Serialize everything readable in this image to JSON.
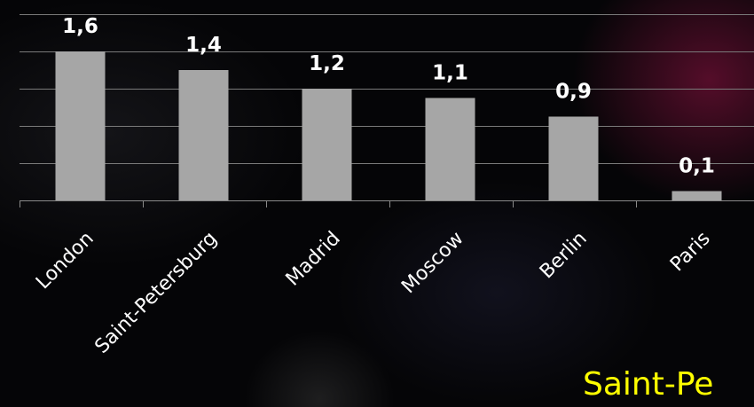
{
  "chart_data": {
    "type": "bar",
    "categories": [
      "London",
      "Saint-Petersburg",
      "Madrid",
      "Moscow",
      "Berlin",
      "Paris"
    ],
    "values": [
      1.6,
      1.4,
      1.2,
      1.1,
      0.9,
      0.1
    ],
    "value_labels": [
      "1,6",
      "1,4",
      "1,2",
      "1,1",
      "0,9",
      "0,1"
    ],
    "ylim": [
      0,
      2
    ],
    "grid": true,
    "legend": "none",
    "bar_color": "#a6a6a6",
    "label_color": "#ffffff"
  },
  "caption": "Saint-Pe",
  "caption_color": "#ffff00"
}
